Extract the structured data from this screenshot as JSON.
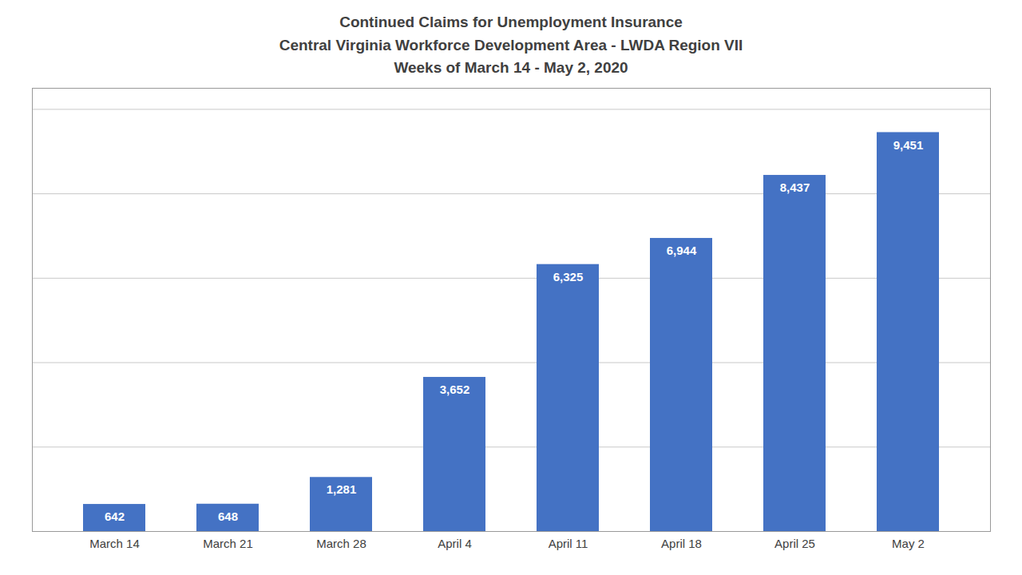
{
  "chart_data": {
    "type": "bar",
    "title": "Continued Claims for Unemployment Insurance\nCentral Virginia Workforce Development Area - LWDA Region VII\nWeeks of March 14 - May 2, 2020",
    "categories": [
      "March 14",
      "March 21",
      "March 28",
      "April 4",
      "April 11",
      "April 18",
      "April 25",
      "May 2"
    ],
    "values": [
      642,
      648,
      1281,
      3652,
      6325,
      6944,
      8437,
      9451
    ],
    "value_labels": [
      "642",
      "648",
      "1,281",
      "3,652",
      "6,325",
      "6,944",
      "8,437",
      "9,451"
    ],
    "color": "#4472C4",
    "ylim": [
      0,
      10500
    ],
    "yticks": [
      0,
      2000,
      4000,
      6000,
      8000,
      10000
    ],
    "grid": true,
    "data_labels": true,
    "tick_labels": "x"
  }
}
